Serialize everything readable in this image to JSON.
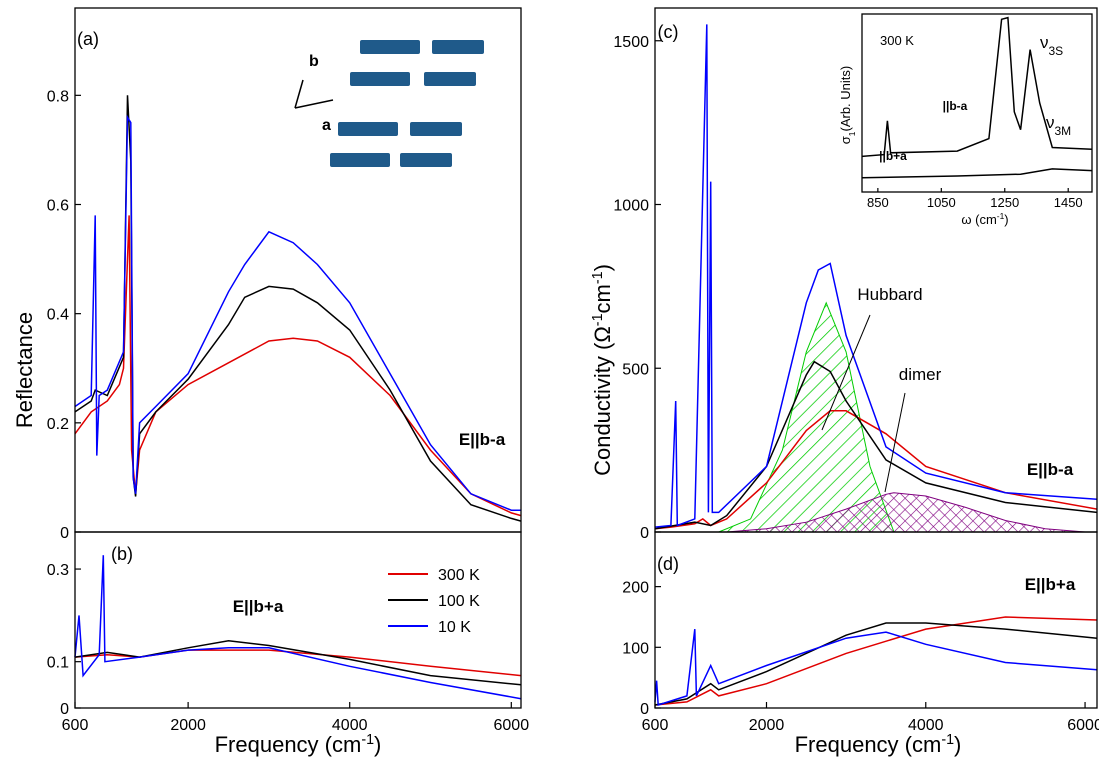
{
  "chart_data": [
    {
      "type": "line",
      "panel": "(a)",
      "note": "E||b-a",
      "ylabel": [
        {
          "text": "Reflectance"
        }
      ],
      "xlim": [
        600,
        6120
      ],
      "ylim": [
        0,
        0.96
      ],
      "yticks": [
        0,
        0.2,
        0.4,
        0.6,
        0.8
      ],
      "series": [
        {
          "color": "#e00000",
          "x": [
            600,
            800,
            1000,
            1150,
            1200,
            1270,
            1300,
            1350,
            1400,
            1600,
            2000,
            2500,
            3000,
            3300,
            3600,
            4000,
            4500,
            5000,
            5500,
            6000,
            6120
          ],
          "values": [
            0.18,
            0.22,
            0.24,
            0.27,
            0.3,
            0.58,
            0.15,
            0.07,
            0.15,
            0.22,
            0.27,
            0.31,
            0.35,
            0.355,
            0.35,
            0.32,
            0.25,
            0.15,
            0.07,
            0.035,
            0.03
          ]
        },
        {
          "color": "#000000",
          "x": [
            600,
            800,
            850,
            1000,
            1200,
            1250,
            1290,
            1320,
            1350,
            1400,
            1600,
            2000,
            2500,
            2700,
            3000,
            3300,
            3600,
            4000,
            4500,
            5000,
            5500,
            6000,
            6120
          ],
          "values": [
            0.22,
            0.24,
            0.26,
            0.25,
            0.32,
            0.8,
            0.68,
            0.1,
            0.065,
            0.18,
            0.22,
            0.28,
            0.38,
            0.43,
            0.45,
            0.445,
            0.42,
            0.37,
            0.26,
            0.13,
            0.05,
            0.025,
            0.02
          ]
        },
        {
          "color": "#0000ff",
          "x": [
            600,
            800,
            850,
            870,
            900,
            1000,
            1200,
            1250,
            1290,
            1320,
            1350,
            1400,
            1600,
            2000,
            2500,
            2700,
            3000,
            3300,
            3600,
            4000,
            4500,
            5000,
            5500,
            6000,
            6120
          ],
          "values": [
            0.23,
            0.25,
            0.58,
            0.14,
            0.25,
            0.26,
            0.33,
            0.76,
            0.75,
            0.1,
            0.07,
            0.2,
            0.23,
            0.29,
            0.44,
            0.49,
            0.55,
            0.53,
            0.49,
            0.42,
            0.29,
            0.16,
            0.07,
            0.04,
            0.04
          ]
        }
      ]
    },
    {
      "type": "line",
      "panel": "(b)",
      "note": "E||b+a",
      "xlabel": [
        {
          "text": "Frequency (cm"
        },
        {
          "text": "-1",
          "sup": true
        },
        {
          "text": ")"
        }
      ],
      "xlim": [
        600,
        6120
      ],
      "ylim": [
        0,
        0.38
      ],
      "xticks": [
        600,
        2000,
        4000,
        6000
      ],
      "yticks": [
        0,
        0.1,
        0.3
      ],
      "legend": true,
      "series": [
        {
          "name": "300 K",
          "color": "#e00000",
          "x": [
            600,
            1000,
            1400,
            2000,
            3000,
            4000,
            5000,
            6120
          ],
          "values": [
            0.11,
            0.115,
            0.11,
            0.125,
            0.125,
            0.11,
            0.09,
            0.07
          ]
        },
        {
          "name": "100 K",
          "color": "#000000",
          "x": [
            600,
            1000,
            1400,
            2000,
            2500,
            3000,
            4000,
            5000,
            6120
          ],
          "values": [
            0.11,
            0.12,
            0.11,
            0.13,
            0.145,
            0.135,
            0.105,
            0.07,
            0.05
          ]
        },
        {
          "name": "10 K",
          "color": "#0000ff",
          "x": [
            600,
            650,
            700,
            900,
            950,
            970,
            1400,
            2000,
            2500,
            3000,
            4000,
            5000,
            6120
          ],
          "values": [
            0.11,
            0.2,
            0.07,
            0.115,
            0.33,
            0.1,
            0.11,
            0.125,
            0.13,
            0.13,
            0.09,
            0.055,
            0.02
          ]
        }
      ]
    },
    {
      "type": "line",
      "panel": "(c)",
      "note": "E||b-a",
      "ylabel": [
        {
          "text": "Conductivity (Ω"
        },
        {
          "text": "-1",
          "sup": true
        },
        {
          "text": "cm"
        },
        {
          "text": "-1",
          "sup": true
        },
        {
          "text": ")"
        }
      ],
      "xlim": [
        600,
        6150
      ],
      "ylim": [
        0,
        1600
      ],
      "yticks": [
        0,
        500,
        1000,
        1500
      ],
      "fits": [
        {
          "label": "Hubbard",
          "color": "#00cc00",
          "x": [
            1400,
            1800,
            2200,
            2500,
            2750,
            3000,
            3300,
            3600
          ],
          "values": [
            0,
            40,
            250,
            550,
            700,
            550,
            200,
            0
          ]
        },
        {
          "label": "dimer",
          "color": "#800080",
          "x": [
            1500,
            2000,
            2500,
            3000,
            3500,
            3600,
            4000,
            4500,
            5000,
            5500,
            6000
          ],
          "values": [
            0,
            10,
            30,
            70,
            115,
            120,
            110,
            75,
            35,
            10,
            0
          ]
        }
      ],
      "series": [
        {
          "color": "#e00000",
          "x": [
            600,
            800,
            1100,
            1200,
            1300,
            1500,
            2000,
            2500,
            2800,
            3000,
            3500,
            4000,
            5000,
            6150
          ],
          "values": [
            10,
            15,
            25,
            40,
            20,
            40,
            150,
            310,
            370,
            370,
            300,
            200,
            120,
            70
          ]
        },
        {
          "color": "#000000",
          "x": [
            600,
            1100,
            1300,
            1500,
            2000,
            2500,
            2600,
            2800,
            3000,
            3500,
            4000,
            5000,
            6150
          ],
          "values": [
            10,
            30,
            20,
            50,
            200,
            480,
            520,
            490,
            400,
            220,
            150,
            90,
            60
          ]
        },
        {
          "color": "#0000ff",
          "x": [
            600,
            800,
            860,
            880,
            1100,
            1250,
            1270,
            1300,
            1320,
            1400,
            2000,
            2500,
            2650,
            2800,
            3000,
            3500,
            4000,
            5000,
            6150
          ],
          "values": [
            15,
            20,
            400,
            20,
            40,
            1550,
            60,
            1070,
            60,
            60,
            200,
            700,
            800,
            820,
            600,
            260,
            180,
            120,
            100
          ]
        }
      ]
    },
    {
      "type": "line",
      "panel": "(d)",
      "note": "E||b+a",
      "xlabel": [
        {
          "text": "Frequency (cm"
        },
        {
          "text": "-1",
          "sup": true
        },
        {
          "text": ")"
        }
      ],
      "xlim": [
        600,
        6150
      ],
      "ylim": [
        0,
        290
      ],
      "xticks": [
        600,
        2000,
        4000,
        6000
      ],
      "yticks": [
        0,
        100,
        200
      ],
      "series": [
        {
          "color": "#e00000",
          "x": [
            600,
            1000,
            1300,
            1400,
            2000,
            3000,
            4000,
            5000,
            6150
          ],
          "values": [
            5,
            10,
            30,
            20,
            40,
            90,
            130,
            150,
            145
          ]
        },
        {
          "color": "#000000",
          "x": [
            600,
            1000,
            1300,
            1400,
            2000,
            3000,
            3500,
            4000,
            5000,
            6150
          ],
          "values": [
            5,
            15,
            40,
            30,
            60,
            120,
            140,
            140,
            130,
            115
          ]
        },
        {
          "color": "#0000ff",
          "x": [
            600,
            620,
            640,
            1000,
            1100,
            1120,
            1300,
            1400,
            2000,
            3000,
            3500,
            4000,
            5000,
            6150
          ],
          "values": [
            10,
            45,
            5,
            20,
            130,
            20,
            70,
            40,
            70,
            115,
            125,
            105,
            75,
            63
          ]
        }
      ]
    },
    {
      "type": "line",
      "note": "300 K",
      "xlabel": [
        {
          "text": "ω (cm"
        },
        {
          "text": "-1",
          "sup": true
        },
        {
          "text": ")"
        }
      ],
      "ylabel": [
        {
          "text": "σ"
        },
        {
          "text": "1",
          "sub": true
        },
        {
          "text": "(Arb. Units)"
        }
      ],
      "xlim": [
        800,
        1525
      ],
      "ylim": [
        0,
        1
      ],
      "xticks": [
        850,
        1050,
        1250,
        1450
      ],
      "bands": [
        {
          "symbol": "ν",
          "sub": "3S"
        },
        {
          "symbol": "ν",
          "sub": "3M"
        }
      ],
      "series": [
        {
          "name": "||b-a",
          "color": "#000000",
          "x": [
            800,
            870,
            880,
            890,
            1100,
            1200,
            1240,
            1260,
            1280,
            1300,
            1330,
            1360,
            1400,
            1525
          ],
          "values": [
            0.2,
            0.21,
            0.4,
            0.22,
            0.23,
            0.3,
            0.97,
            0.98,
            0.45,
            0.35,
            0.8,
            0.5,
            0.25,
            0.24
          ]
        },
        {
          "name": "||b+a",
          "color": "#000000",
          "x": [
            800,
            1100,
            1300,
            1400,
            1525
          ],
          "values": [
            0.08,
            0.09,
            0.1,
            0.13,
            0.12
          ]
        }
      ]
    }
  ],
  "inset_diagram": {
    "labels": [
      "b",
      "a"
    ]
  }
}
